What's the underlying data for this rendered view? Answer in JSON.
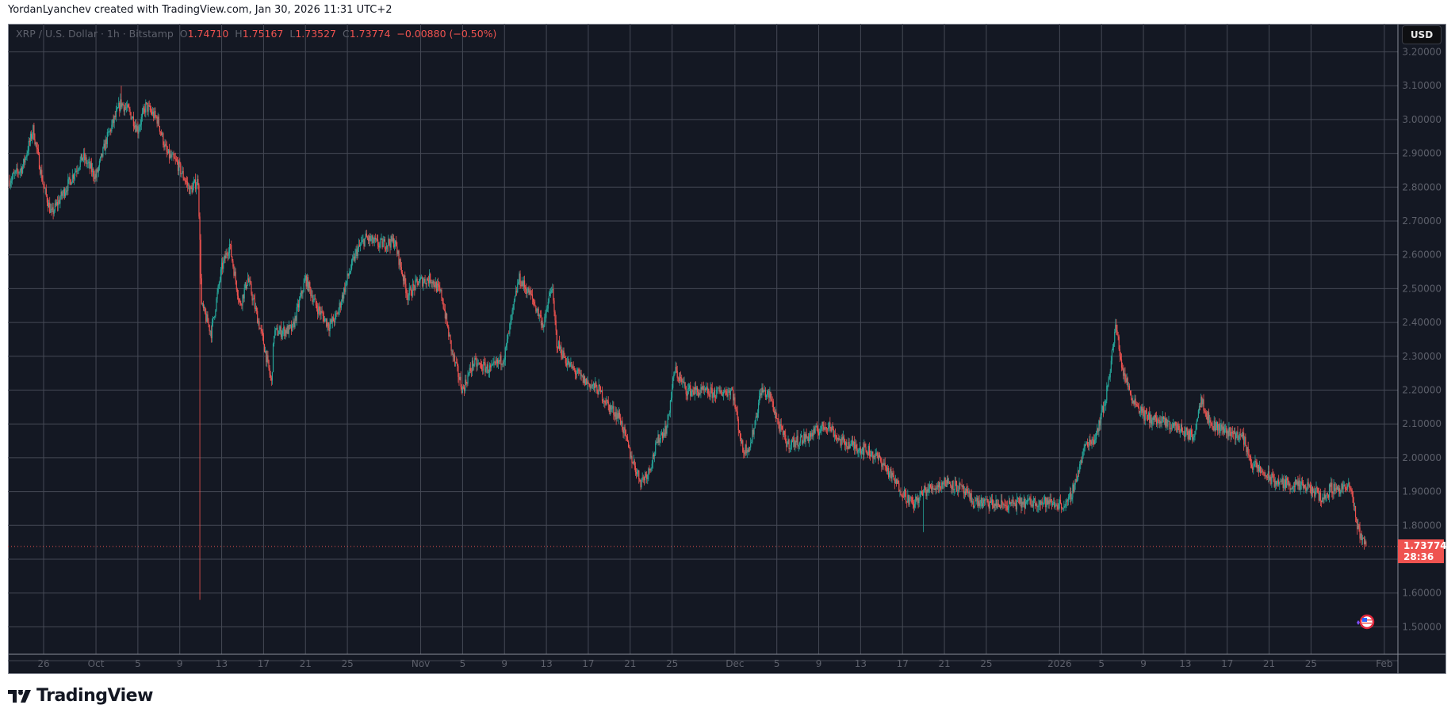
{
  "credit": "YordanLyanchev created with TradingView.com, Jan 30, 2026 11:31 UTC+2",
  "legend": {
    "symbol": "XRP / U.S. Dollar · 1h · Bitstamp",
    "open_label": "O",
    "open": "1.74710",
    "high_label": "H",
    "high": "1.75167",
    "low_label": "L",
    "low": "1.73527",
    "close_label": "C",
    "close": "1.73774",
    "change": "−0.00880 (−0.50%)"
  },
  "currency_button": "USD",
  "last_price": {
    "value": "1.73774",
    "countdown": "28:36"
  },
  "brand": "TradingView",
  "colors": {
    "background": "#141823",
    "grid": "#454955",
    "up": "#26a69a",
    "down": "#ef5350",
    "axis_text": "#5d606b"
  },
  "chart_data": {
    "type": "candlestick",
    "title": "",
    "interval": "1h",
    "ylim": [
      1.42,
      3.26
    ],
    "y_ticks": [
      "3.20000",
      "3.10000",
      "3.00000",
      "2.90000",
      "2.80000",
      "2.70000",
      "2.60000",
      "2.50000",
      "2.40000",
      "2.30000",
      "2.20000",
      "2.10000",
      "2.00000",
      "1.90000",
      "1.80000",
      "1.60000",
      "1.50000"
    ],
    "x_ticks": [
      {
        "label": "26",
        "date": "2025-09-26"
      },
      {
        "label": "Oct",
        "date": "2025-10-01"
      },
      {
        "label": "5",
        "date": "2025-10-05"
      },
      {
        "label": "9",
        "date": "2025-10-09"
      },
      {
        "label": "13",
        "date": "2025-10-13"
      },
      {
        "label": "17",
        "date": "2025-10-17"
      },
      {
        "label": "21",
        "date": "2025-10-21"
      },
      {
        "label": "25",
        "date": "2025-10-25"
      },
      {
        "label": "Nov",
        "date": "2025-11-01"
      },
      {
        "label": "5",
        "date": "2025-11-05"
      },
      {
        "label": "9",
        "date": "2025-11-09"
      },
      {
        "label": "13",
        "date": "2025-11-13"
      },
      {
        "label": "17",
        "date": "2025-11-17"
      },
      {
        "label": "21",
        "date": "2025-11-21"
      },
      {
        "label": "25",
        "date": "2025-11-25"
      },
      {
        "label": "Dec",
        "date": "2025-12-01"
      },
      {
        "label": "5",
        "date": "2025-12-05"
      },
      {
        "label": "9",
        "date": "2025-12-09"
      },
      {
        "label": "13",
        "date": "2025-12-13"
      },
      {
        "label": "17",
        "date": "2025-12-17"
      },
      {
        "label": "21",
        "date": "2025-12-21"
      },
      {
        "label": "25",
        "date": "2025-12-25"
      },
      {
        "label": "2026",
        "date": "2026-01-01"
      },
      {
        "label": "5",
        "date": "2026-01-05"
      },
      {
        "label": "9",
        "date": "2026-01-09"
      },
      {
        "label": "13",
        "date": "2026-01-13"
      },
      {
        "label": "17",
        "date": "2026-01-17"
      },
      {
        "label": "21",
        "date": "2026-01-21"
      },
      {
        "label": "25",
        "date": "2026-01-25"
      },
      {
        "label": "Feb",
        "date": "2026-02-01"
      }
    ],
    "last_close": 1.73774,
    "wick_extremes": [
      {
        "date": "2025-10-10 21:00",
        "low": 1.58
      },
      {
        "date": "2025-10-03 09:00",
        "high": 3.1
      },
      {
        "date": "2025-12-19 00:00",
        "low": 1.78
      },
      {
        "date": "2026-01-06 09:00",
        "high": 2.41
      }
    ],
    "closes": [
      [
        "2025-09-22 18:00",
        2.82
      ],
      [
        "2025-09-24 00:00",
        2.86
      ],
      [
        "2025-09-25 00:00",
        2.97
      ],
      [
        "2025-09-26 00:00",
        2.8
      ],
      [
        "2025-09-26 18:00",
        2.72
      ],
      [
        "2025-09-28 00:00",
        2.79
      ],
      [
        "2025-09-29 18:00",
        2.89
      ],
      [
        "2025-10-01 00:00",
        2.83
      ],
      [
        "2025-10-02 00:00",
        2.94
      ],
      [
        "2025-10-03 09:00",
        3.05
      ],
      [
        "2025-10-04 06:00",
        3.02
      ],
      [
        "2025-10-05 00:00",
        2.97
      ],
      [
        "2025-10-05 18:00",
        3.04
      ],
      [
        "2025-10-06 21:00",
        3.0
      ],
      [
        "2025-10-07 18:00",
        2.9
      ],
      [
        "2025-10-08 18:00",
        2.87
      ],
      [
        "2025-10-10 00:00",
        2.79
      ],
      [
        "2025-10-10 18:00",
        2.82
      ],
      [
        "2025-10-11 02:00",
        2.45
      ],
      [
        "2025-10-12 00:00",
        2.37
      ],
      [
        "2025-10-13 00:00",
        2.56
      ],
      [
        "2025-10-13 18:00",
        2.63
      ],
      [
        "2025-10-14 18:00",
        2.45
      ],
      [
        "2025-10-15 12:00",
        2.53
      ],
      [
        "2025-10-17 00:00",
        2.34
      ],
      [
        "2025-10-17 18:00",
        2.22
      ],
      [
        "2025-10-18 00:00",
        2.37
      ],
      [
        "2025-10-19 18:00",
        2.38
      ],
      [
        "2025-10-21 00:00",
        2.53
      ],
      [
        "2025-10-22 00:00",
        2.45
      ],
      [
        "2025-10-23 06:00",
        2.39
      ],
      [
        "2025-10-24 00:00",
        2.42
      ],
      [
        "2025-10-25 00:00",
        2.53
      ],
      [
        "2025-10-25 21:00",
        2.61
      ],
      [
        "2025-10-26 18:00",
        2.65
      ],
      [
        "2025-10-28 00:00",
        2.63
      ],
      [
        "2025-10-29 12:00",
        2.64
      ],
      [
        "2025-10-30 18:00",
        2.48
      ],
      [
        "2025-10-31 18:00",
        2.52
      ],
      [
        "2025-11-02 00:00",
        2.53
      ],
      [
        "2025-11-03 00:00",
        2.48
      ],
      [
        "2025-11-04 00:00",
        2.31
      ],
      [
        "2025-11-05 00:00",
        2.2
      ],
      [
        "2025-11-06 00:00",
        2.28
      ],
      [
        "2025-11-07 18:00",
        2.26
      ],
      [
        "2025-11-09 00:00",
        2.3
      ],
      [
        "2025-11-10 09:00",
        2.53
      ],
      [
        "2025-11-11 12:00",
        2.48
      ],
      [
        "2025-11-12 18:00",
        2.39
      ],
      [
        "2025-11-13 12:00",
        2.51
      ],
      [
        "2025-11-14 00:00",
        2.34
      ],
      [
        "2025-11-15 00:00",
        2.28
      ],
      [
        "2025-11-16 12:00",
        2.23
      ],
      [
        "2025-11-18 00:00",
        2.2
      ],
      [
        "2025-11-19 00:00",
        2.15
      ],
      [
        "2025-11-20 00:00",
        2.12
      ],
      [
        "2025-11-21 00:00",
        2.01
      ],
      [
        "2025-11-22 00:00",
        1.93
      ],
      [
        "2025-11-22 18:00",
        1.96
      ],
      [
        "2025-11-23 18:00",
        2.06
      ],
      [
        "2025-11-24 12:00",
        2.09
      ],
      [
        "2025-11-25 06:00",
        2.26
      ],
      [
        "2025-11-26 09:00",
        2.2
      ],
      [
        "2025-11-29 00:00",
        2.19
      ],
      [
        "2025-11-30 18:00",
        2.2
      ],
      [
        "2025-12-01 18:00",
        2.02
      ],
      [
        "2025-12-02 12:00",
        2.04
      ],
      [
        "2025-12-03 12:00",
        2.2
      ],
      [
        "2025-12-04 09:00",
        2.18
      ],
      [
        "2025-12-05 06:00",
        2.09
      ],
      [
        "2025-12-06 00:00",
        2.04
      ],
      [
        "2025-12-07 21:00",
        2.06
      ],
      [
        "2025-12-09 21:00",
        2.1
      ],
      [
        "2025-12-11 00:00",
        2.05
      ],
      [
        "2025-12-13 18:00",
        2.02
      ],
      [
        "2025-12-15 00:00",
        1.99
      ],
      [
        "2025-12-16 06:00",
        1.93
      ],
      [
        "2025-12-18 00:00",
        1.86
      ],
      [
        "2025-12-19 00:00",
        1.9
      ],
      [
        "2025-12-21 06:00",
        1.93
      ],
      [
        "2025-12-22 12:00",
        1.91
      ],
      [
        "2025-12-23 18:00",
        1.87
      ],
      [
        "2025-12-26 12:00",
        1.86
      ],
      [
        "2025-12-30 00:00",
        1.87
      ],
      [
        "2026-01-01 18:00",
        1.86
      ],
      [
        "2026-01-02 12:00",
        1.93
      ],
      [
        "2026-01-03 12:00",
        2.04
      ],
      [
        "2026-01-04 09:00",
        2.06
      ],
      [
        "2026-01-05 09:00",
        2.17
      ],
      [
        "2026-01-06 09:00",
        2.39
      ],
      [
        "2026-01-07 00:00",
        2.26
      ],
      [
        "2026-01-07 21:00",
        2.18
      ],
      [
        "2026-01-09 06:00",
        2.12
      ],
      [
        "2026-01-12 06:00",
        2.09
      ],
      [
        "2026-01-13 18:00",
        2.06
      ],
      [
        "2026-01-14 12:00",
        2.18
      ],
      [
        "2026-01-15 09:00",
        2.1
      ],
      [
        "2026-01-18 12:00",
        2.06
      ],
      [
        "2026-01-19 09:00",
        1.98
      ],
      [
        "2026-01-21 12:00",
        1.93
      ],
      [
        "2026-01-24 18:00",
        1.91
      ],
      [
        "2026-01-26 06:00",
        1.88
      ],
      [
        "2026-01-26 21:00",
        1.91
      ],
      [
        "2026-01-28 18:00",
        1.91
      ],
      [
        "2026-01-29 12:00",
        1.79
      ],
      [
        "2026-01-30 06:00",
        1.73774
      ]
    ]
  }
}
